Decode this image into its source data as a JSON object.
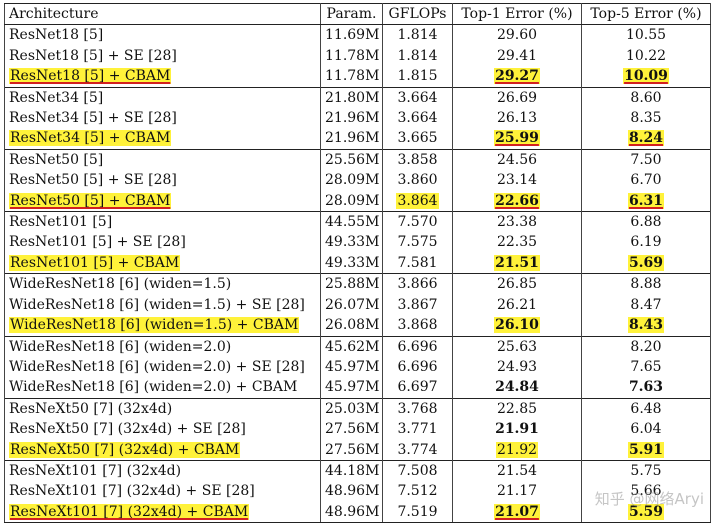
{
  "header": {
    "architecture": "Architecture",
    "param": "Param.",
    "gflops": "GFLOPs",
    "top1": "Top-1 Error (%)",
    "top5": "Top-5 Error (%)"
  },
  "groups": [
    {
      "rows": [
        {
          "arch": "ResNet18 [5]",
          "param": "11.69M",
          "gflops": "1.814",
          "top1": "29.60",
          "top5": "10.55"
        },
        {
          "arch": "ResNet18 [5] + SE [28]",
          "param": "11.78M",
          "gflops": "1.814",
          "top1": "29.41",
          "top5": "10.22"
        },
        {
          "arch": "ResNet18 [5] + CBAM",
          "param": "11.78M",
          "gflops": "1.815",
          "top1": "29.27",
          "top5": "10.09",
          "hl_arch": true,
          "ul_arch": true,
          "hl_top1": true,
          "bold_top1": true,
          "ul_top1": true,
          "hl_top5": true,
          "bold_top5": true,
          "ul_top5": true
        }
      ]
    },
    {
      "rows": [
        {
          "arch": "ResNet34 [5]",
          "param": "21.80M",
          "gflops": "3.664",
          "top1": "26.69",
          "top5": "8.60"
        },
        {
          "arch": "ResNet34 [5] + SE [28]",
          "param": "21.96M",
          "gflops": "3.664",
          "top1": "26.13",
          "top5": "8.35"
        },
        {
          "arch": "ResNet34 [5] + CBAM",
          "param": "21.96M",
          "gflops": "3.665",
          "top1": "25.99",
          "top5": "8.24",
          "hl_arch": true,
          "hl_top1": true,
          "bold_top1": true,
          "ul_top1": true,
          "hl_top5": true,
          "bold_top5": true,
          "ul_top5": true
        }
      ]
    },
    {
      "rows": [
        {
          "arch": "ResNet50 [5]",
          "param": "25.56M",
          "gflops": "3.858",
          "top1": "24.56",
          "top5": "7.50"
        },
        {
          "arch": "ResNet50 [5] + SE [28]",
          "param": "28.09M",
          "gflops": "3.860",
          "top1": "23.14",
          "top5": "6.70"
        },
        {
          "arch": "ResNet50 [5] + CBAM",
          "param": "28.09M",
          "gflops": "3.864",
          "top1": "22.66",
          "top5": "6.31",
          "hl_arch": true,
          "ul_arch": true,
          "hl_gflops": true,
          "hl_top1": true,
          "bold_top1": true,
          "ul_top1": true,
          "hl_top5": true,
          "bold_top5": true,
          "ul_top5": true
        }
      ]
    },
    {
      "rows": [
        {
          "arch": "ResNet101 [5]",
          "param": "44.55M",
          "gflops": "7.570",
          "top1": "23.38",
          "top5": "6.88"
        },
        {
          "arch": "ResNet101 [5] + SE [28]",
          "param": "49.33M",
          "gflops": "7.575",
          "top1": "22.35",
          "top5": "6.19"
        },
        {
          "arch": "ResNet101 [5] + CBAM",
          "param": "49.33M",
          "gflops": "7.581",
          "top1": "21.51",
          "top5": "5.69",
          "hl_arch": true,
          "hl_top1": true,
          "bold_top1": true,
          "hl_top5": true,
          "bold_top5": true
        }
      ]
    },
    {
      "rows": [
        {
          "arch": "WideResNet18 [6] (widen=1.5)",
          "param": "25.88M",
          "gflops": "3.866",
          "top1": "26.85",
          "top5": "8.88"
        },
        {
          "arch": "WideResNet18 [6] (widen=1.5) + SE [28]",
          "param": "26.07M",
          "gflops": "3.867",
          "top1": "26.21",
          "top5": "8.47"
        },
        {
          "arch": "WideResNet18 [6] (widen=1.5) + CBAM",
          "param": "26.08M",
          "gflops": "3.868",
          "top1": "26.10",
          "top5": "8.43",
          "hl_arch": true,
          "hl_top1": true,
          "bold_top1": true,
          "hl_top5": true,
          "bold_top5": true
        }
      ]
    },
    {
      "rows": [
        {
          "arch": "WideResNet18 [6] (widen=2.0)",
          "param": "45.62M",
          "gflops": "6.696",
          "top1": "25.63",
          "top5": "8.20"
        },
        {
          "arch": "WideResNet18 [6] (widen=2.0) + SE [28]",
          "param": "45.97M",
          "gflops": "6.696",
          "top1": "24.93",
          "top5": "7.65"
        },
        {
          "arch": "WideResNet18 [6] (widen=2.0) + CBAM",
          "param": "45.97M",
          "gflops": "6.697",
          "top1": "24.84",
          "top5": "7.63",
          "bold_top1": true,
          "bold_top5": true
        }
      ]
    },
    {
      "rows": [
        {
          "arch": "ResNeXt50 [7] (32x4d)",
          "param": "25.03M",
          "gflops": "3.768",
          "top1": "22.85",
          "top5": "6.48"
        },
        {
          "arch": "ResNeXt50 [7] (32x4d) + SE [28]",
          "param": "27.56M",
          "gflops": "3.771",
          "top1": "21.91",
          "top5": "6.04",
          "bold_top1": true
        },
        {
          "arch": "ResNeXt50 [7] (32x4d) + CBAM",
          "param": "27.56M",
          "gflops": "3.774",
          "top1": "21.92",
          "top5": "5.91",
          "hl_arch": true,
          "hl_top1": true,
          "hl_top5": true,
          "bold_top5": true
        }
      ]
    },
    {
      "rows": [
        {
          "arch": "ResNeXt101 [7] (32x4d)",
          "param": "44.18M",
          "gflops": "7.508",
          "top1": "21.54",
          "top5": "5.75"
        },
        {
          "arch": "ResNeXt101 [7] (32x4d) + SE [28]",
          "param": "48.96M",
          "gflops": "7.512",
          "top1": "21.17",
          "top5": "5.66"
        },
        {
          "arch": "ResNeXt101 [7] (32x4d) + CBAM",
          "param": "48.96M",
          "gflops": "7.519",
          "top1": "21.07",
          "top5": "5.59",
          "hl_arch": true,
          "ul_arch": true,
          "hl_top1": true,
          "bold_top1": true,
          "ul_top1": true,
          "hl_top5": true,
          "bold_top5": true
        }
      ]
    }
  ],
  "watermark": "知乎 @网络Aryi",
  "colors": {
    "highlight": "#fff23a",
    "underline": "#d22020"
  }
}
